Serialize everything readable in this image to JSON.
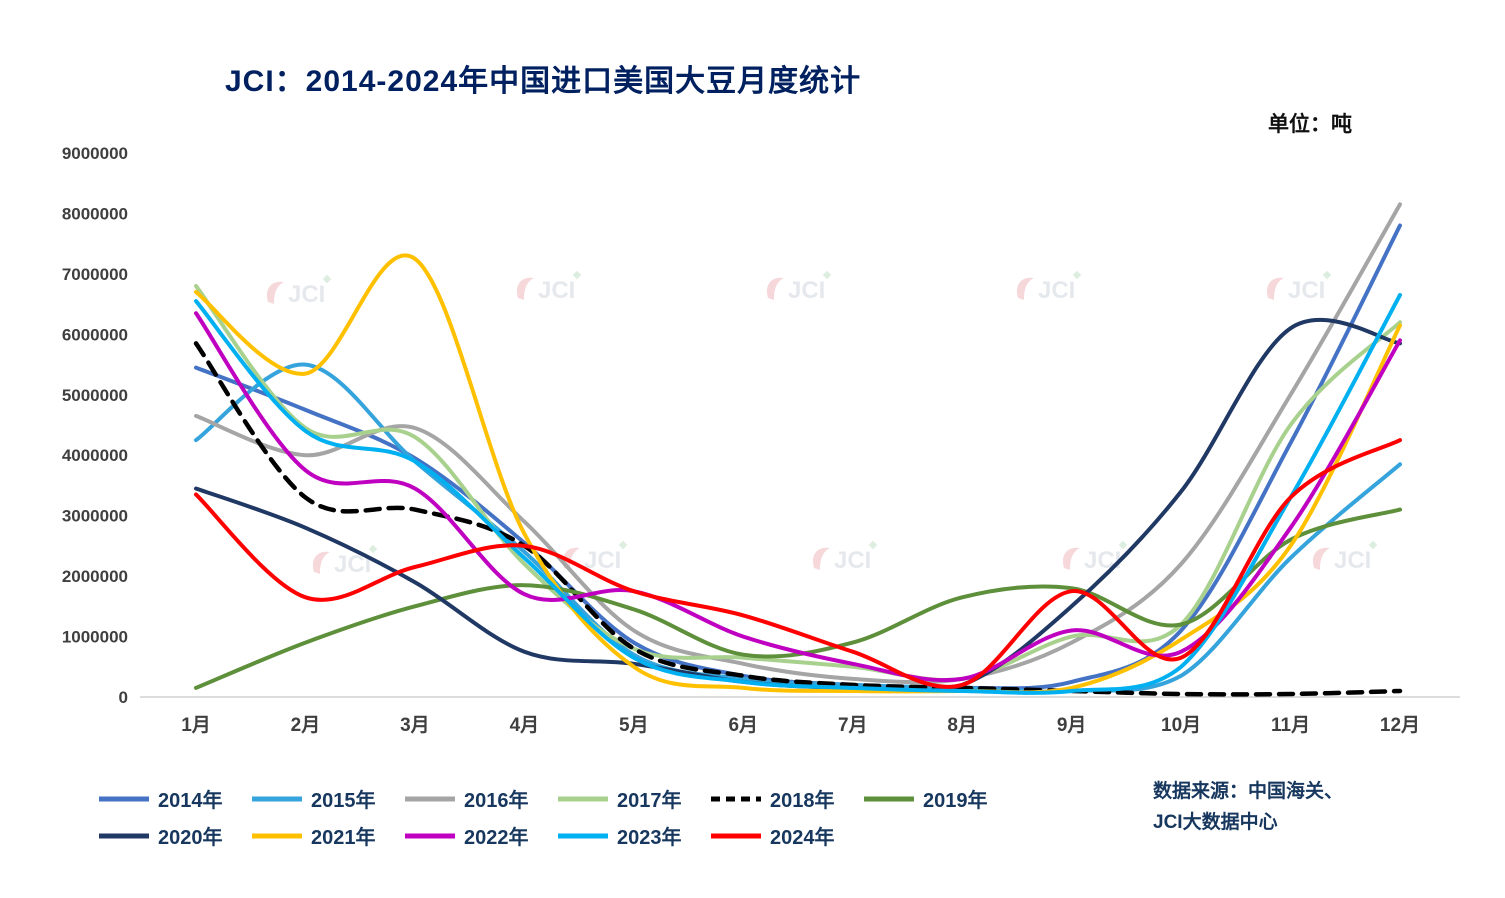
{
  "title": "JCI：2014-2024年中国进口美国大豆月度统计",
  "unit_label": "单位：吨",
  "source": {
    "line1": "数据来源：中国海关、",
    "line2": "JCI大数据中心"
  },
  "watermark_text": "JCI",
  "chart_data": {
    "type": "line",
    "title": "JCI：2014-2024年中国进口美国大豆月度统计",
    "ylabel": "吨",
    "ylim": [
      0,
      9000000
    ],
    "ytick_step": 1000000,
    "grid": false,
    "legend_position": "bottom-left",
    "categories": [
      "1月",
      "2月",
      "3月",
      "4月",
      "5月",
      "6月",
      "7月",
      "8月",
      "9月",
      "10月",
      "11月",
      "12月"
    ],
    "series": [
      {
        "name": "2014年",
        "color": "#4472C4",
        "dash": false,
        "values": [
          5450000,
          4750000,
          3950000,
          2550000,
          900000,
          350000,
          200000,
          150000,
          250000,
          1100000,
          4200000,
          7800000
        ]
      },
      {
        "name": "2015年",
        "color": "#35A3DC",
        "dash": false,
        "values": [
          4250000,
          5500000,
          3900000,
          2400000,
          700000,
          300000,
          200000,
          150000,
          100000,
          350000,
          2300000,
          3850000
        ]
      },
      {
        "name": "2016年",
        "color": "#A5A5A5",
        "dash": false,
        "values": [
          4650000,
          4000000,
          4450000,
          2900000,
          1100000,
          550000,
          300000,
          300000,
          900000,
          2200000,
          5000000,
          8150000
        ]
      },
      {
        "name": "2017年",
        "color": "#A9D18E",
        "dash": false,
        "values": [
          6800000,
          4450000,
          4300000,
          2200000,
          800000,
          650000,
          500000,
          300000,
          1000000,
          1200000,
          4500000,
          6200000
        ]
      },
      {
        "name": "2018年",
        "color": "#000000",
        "dash": true,
        "values": [
          5850000,
          3300000,
          3100000,
          2500000,
          800000,
          350000,
          200000,
          150000,
          100000,
          50000,
          50000,
          100000
        ]
      },
      {
        "name": "2019年",
        "color": "#5E8F3A",
        "dash": false,
        "values": [
          150000,
          900000,
          1500000,
          1850000,
          1450000,
          700000,
          900000,
          1650000,
          1800000,
          1200000,
          2600000,
          3100000
        ]
      },
      {
        "name": "2020年",
        "color": "#203864",
        "dash": false,
        "values": [
          3450000,
          2800000,
          1900000,
          750000,
          550000,
          250000,
          150000,
          200000,
          1500000,
          3400000,
          6100000,
          5850000
        ]
      },
      {
        "name": "2021年",
        "color": "#FFC000",
        "dash": false,
        "values": [
          6700000,
          5350000,
          7250000,
          2700000,
          500000,
          150000,
          100000,
          100000,
          150000,
          950000,
          2500000,
          6150000
        ]
      },
      {
        "name": "2022年",
        "color": "#C000C0",
        "dash": false,
        "values": [
          6350000,
          3750000,
          3450000,
          1700000,
          1750000,
          1000000,
          550000,
          300000,
          1100000,
          750000,
          2800000,
          5900000
        ]
      },
      {
        "name": "2023年",
        "color": "#00B0F0",
        "dash": false,
        "values": [
          6550000,
          4400000,
          3900000,
          2300000,
          650000,
          250000,
          150000,
          100000,
          100000,
          500000,
          3300000,
          6650000
        ]
      },
      {
        "name": "2024年",
        "color": "#FF0000",
        "dash": false,
        "values": [
          3350000,
          1650000,
          2150000,
          2500000,
          1750000,
          1350000,
          750000,
          200000,
          1750000,
          650000,
          3300000,
          4250000
        ]
      }
    ]
  }
}
